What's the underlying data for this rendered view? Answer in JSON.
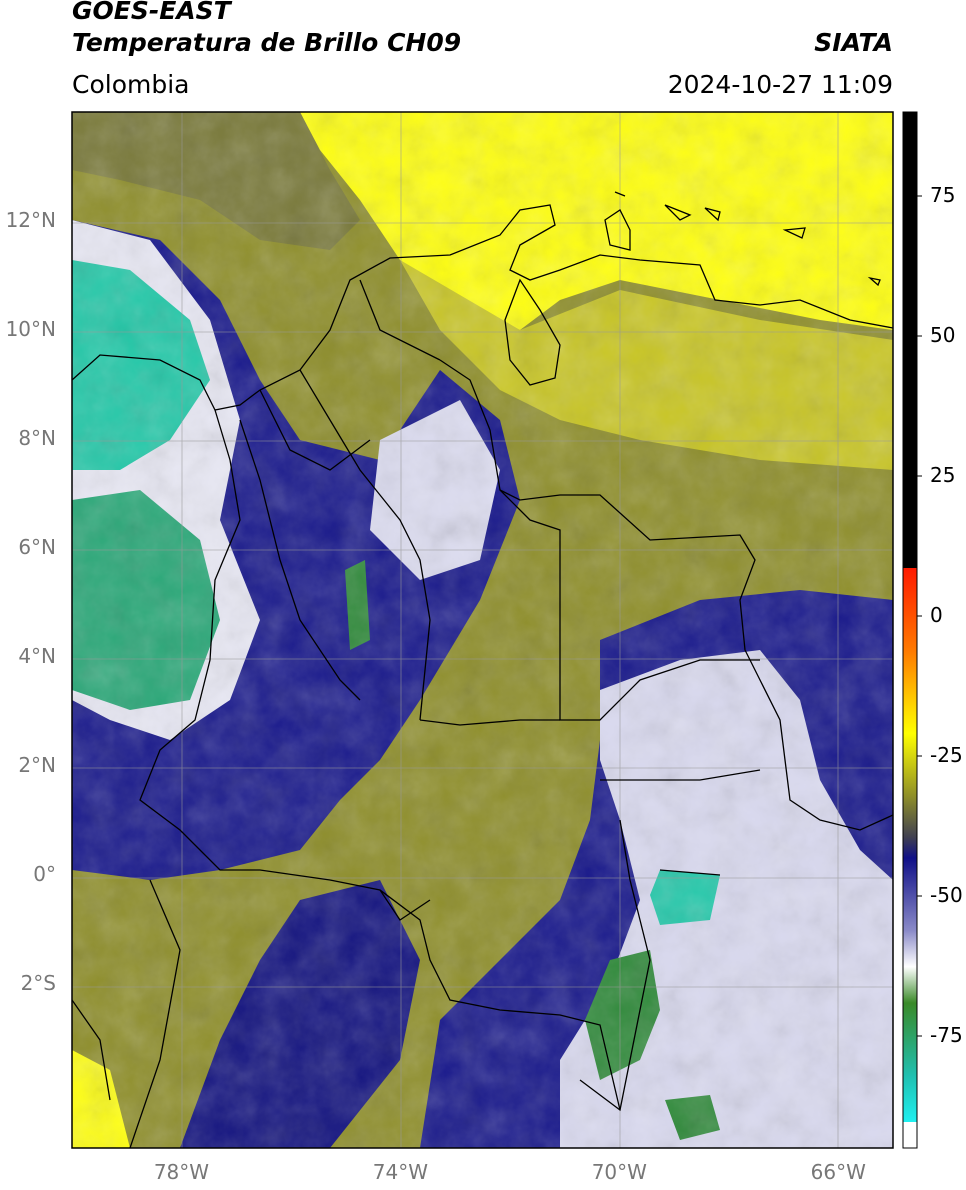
{
  "header": {
    "satellite": "GOES-EAST",
    "product": "Temperatura de Brillo CH09",
    "region": "Colombia",
    "brand": "SIATA",
    "timestamp": "2024-10-27 11:09"
  },
  "axes": {
    "lat_ticks": [
      {
        "label": "12°N",
        "value": 12
      },
      {
        "label": "10°N",
        "value": 10
      },
      {
        "label": "8°N",
        "value": 8
      },
      {
        "label": "6°N",
        "value": 6
      },
      {
        "label": "4°N",
        "value": 4
      },
      {
        "label": "2°N",
        "value": 2
      },
      {
        "label": "0°",
        "value": 0
      },
      {
        "label": "2°S",
        "value": -2
      }
    ],
    "lon_ticks": [
      {
        "label": "78°W",
        "value": -78
      },
      {
        "label": "74°W",
        "value": -74
      },
      {
        "label": "70°W",
        "value": -70
      },
      {
        "label": "66°W",
        "value": -66
      }
    ],
    "lon_range": [
      -80,
      -65
    ],
    "lat_range": [
      -5,
      14
    ]
  },
  "colorbar": {
    "ticks": [
      {
        "label": "75",
        "value": 75
      },
      {
        "label": "50",
        "value": 50
      },
      {
        "label": "25",
        "value": 25
      },
      {
        "label": "0",
        "value": 0
      },
      {
        "label": "-25",
        "value": -25
      },
      {
        "label": "-50",
        "value": -50
      },
      {
        "label": "-75",
        "value": -75
      }
    ],
    "range": [
      -95,
      90
    ],
    "colors": {
      "black": "#000000",
      "red": "#ff2200",
      "orange": "#ff9900",
      "yellow": "#ffff00",
      "olive": "#8f8f28",
      "navy": "#101088",
      "white": "#ffffff",
      "green": "#3a8a28",
      "cyan": "#20e0d0"
    }
  }
}
